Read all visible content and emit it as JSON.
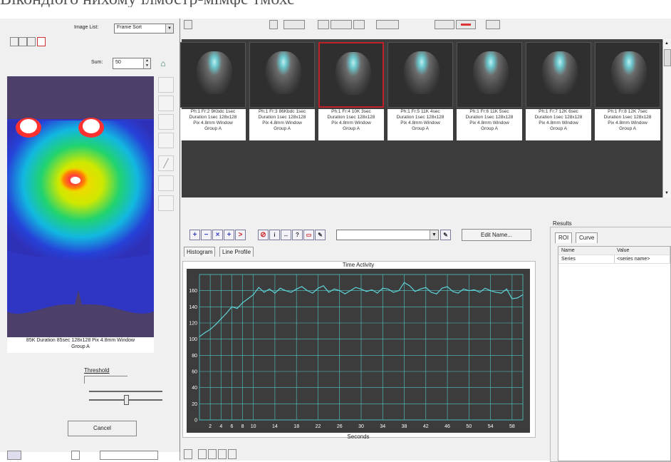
{
  "header_text": "Вікондіого нихому ілмостр-мімфе тмохе",
  "left_panel": {
    "image_list_label": "Image List:",
    "image_list_value": "Frame Sort",
    "sum_label": "Sum:",
    "sum_value": "50",
    "caption_line1": "85K Duration 85sec 128x128 Pix 4.8mm Window",
    "caption_line2": "Group A",
    "threshold_label": "Threshold",
    "cancel_label": "Cancel"
  },
  "thumbnails": [
    {
      "line1": "Ph:1 Fr:2 9Kbdc 1sec",
      "line2": "Duration 1sec 128x128",
      "line3": "Pix 4.8mm Window",
      "line4": "Group A"
    },
    {
      "line1": "Ph:1 Fr:3 86Kbdc 1sec",
      "line2": "Duration 1sec 128x128",
      "line3": "Pix 4.8mm Window",
      "line4": "Group A"
    },
    {
      "line1": "Ph:1 Fr:4 10K 3sec",
      "line2": "Duration 1sec 128x128",
      "line3": "Pix 4.8mm Window",
      "line4": "Group A"
    },
    {
      "line1": "Ph:1 Fr:5 11K 4sec",
      "line2": "Duration 1sec 128x128",
      "line3": "Pix 4.8mm Window",
      "line4": "Group A"
    },
    {
      "line1": "Ph:1 Fr:6 11K 5sec",
      "line2": "Duration 1sec 128x128",
      "line3": "Pix 4.8mm Window",
      "line4": "Group A"
    },
    {
      "line1": "Ph:1 Fr:7 12K 6sec",
      "line2": "Duration 1sec 128x128",
      "line3": "Pix 4.8mm Window",
      "line4": "Group A"
    },
    {
      "line1": "Ph:1 Fr:8 12K 7sec",
      "line2": "Duration 1sec 128x128",
      "line3": "Pix 4.8mm Window",
      "line4": "Group A"
    }
  ],
  "roi_toolbar": {
    "edit_name_label": "Edit Name..."
  },
  "tabs": [
    "Histogram",
    "Line Profile"
  ],
  "results": {
    "title": "Results",
    "tabs": [
      "ROI",
      "Curve"
    ],
    "col_name": "Name",
    "col_value": "Value",
    "row_name": "Series",
    "row_value": "<series name>"
  },
  "chart_data": {
    "type": "line",
    "title": "Time Activity",
    "xlabel": "Seconds",
    "ylabel": "",
    "x_ticks": [
      2,
      4,
      6,
      8,
      10,
      14,
      18,
      22,
      26,
      30,
      34,
      38,
      42,
      46,
      50,
      54,
      58
    ],
    "y_ticks": [
      0,
      20,
      40,
      60,
      80,
      100,
      120,
      140,
      160
    ],
    "xlim": [
      0,
      60
    ],
    "ylim": [
      0,
      180
    ],
    "line_color": "#5fd3d8",
    "grid": true,
    "series": [
      {
        "x": [
          0,
          1,
          2,
          3,
          4,
          5,
          6,
          7,
          8,
          9,
          10,
          11,
          12,
          13,
          14,
          15,
          16,
          17,
          18,
          19,
          20,
          21,
          22,
          23,
          24,
          25,
          26,
          27,
          28,
          29,
          30,
          31,
          32,
          33,
          34,
          35,
          36,
          37,
          38,
          39,
          40,
          41,
          42,
          43,
          44,
          45,
          46,
          47,
          48,
          49,
          50,
          51,
          52,
          53,
          54,
          55,
          56,
          57,
          58,
          59,
          60
        ],
        "values": [
          103,
          108,
          112,
          118,
          125,
          132,
          140,
          138,
          145,
          150,
          155,
          164,
          158,
          162,
          157,
          163,
          160,
          158,
          162,
          165,
          160,
          157,
          163,
          166,
          158,
          162,
          160,
          156,
          160,
          164,
          162,
          159,
          161,
          157,
          163,
          162,
          158,
          160,
          170,
          166,
          159,
          162,
          164,
          158,
          156,
          163,
          165,
          159,
          157,
          162,
          160,
          161,
          158,
          163,
          160,
          158,
          157,
          162,
          150,
          151,
          155
        ]
      }
    ]
  }
}
